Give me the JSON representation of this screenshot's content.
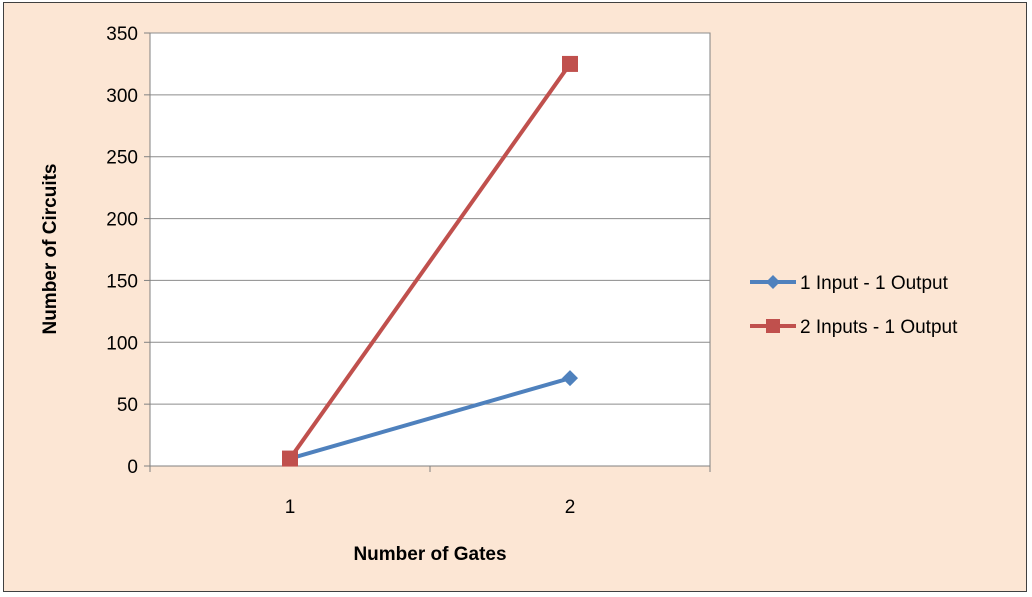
{
  "chart_data": {
    "type": "line",
    "categories": [
      "1",
      "2"
    ],
    "series": [
      {
        "name": "1 Input - 1 Output",
        "values": [
          6,
          71
        ],
        "color": "#4f81bd",
        "marker": "diamond"
      },
      {
        "name": "2 Inputs - 1 Output",
        "values": [
          6,
          325
        ],
        "color": "#c0504d",
        "marker": "square"
      }
    ],
    "xlabel": "Number of Gates",
    "ylabel": "Number of Circuits",
    "ylim": [
      0,
      350
    ],
    "yticks": [
      0,
      50,
      100,
      150,
      200,
      250,
      300,
      350
    ],
    "grid": true,
    "legend_position": "right",
    "background_color": "#fce6d4",
    "plot_background_color": "#ffffff"
  }
}
